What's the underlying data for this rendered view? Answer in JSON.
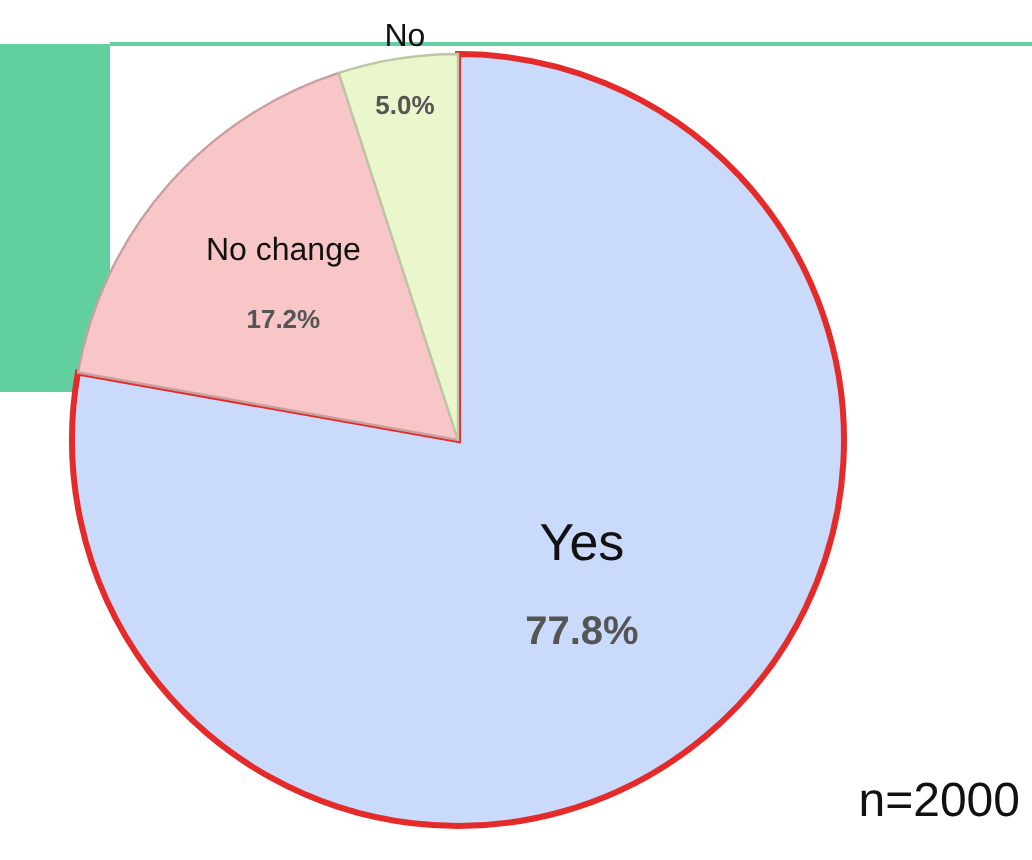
{
  "chart_data": {
    "type": "pie",
    "categories": [
      "Yes",
      "No change",
      "No"
    ],
    "values": [
      77.8,
      17.2,
      5.0
    ],
    "colors": [
      "#c9dafa",
      "#f8c6c6",
      "#eaf6cc"
    ],
    "value_labels": [
      "77.8%",
      "17.2%",
      "5.0%"
    ],
    "legend": false,
    "annotations": [
      "n=2000"
    ]
  }
}
